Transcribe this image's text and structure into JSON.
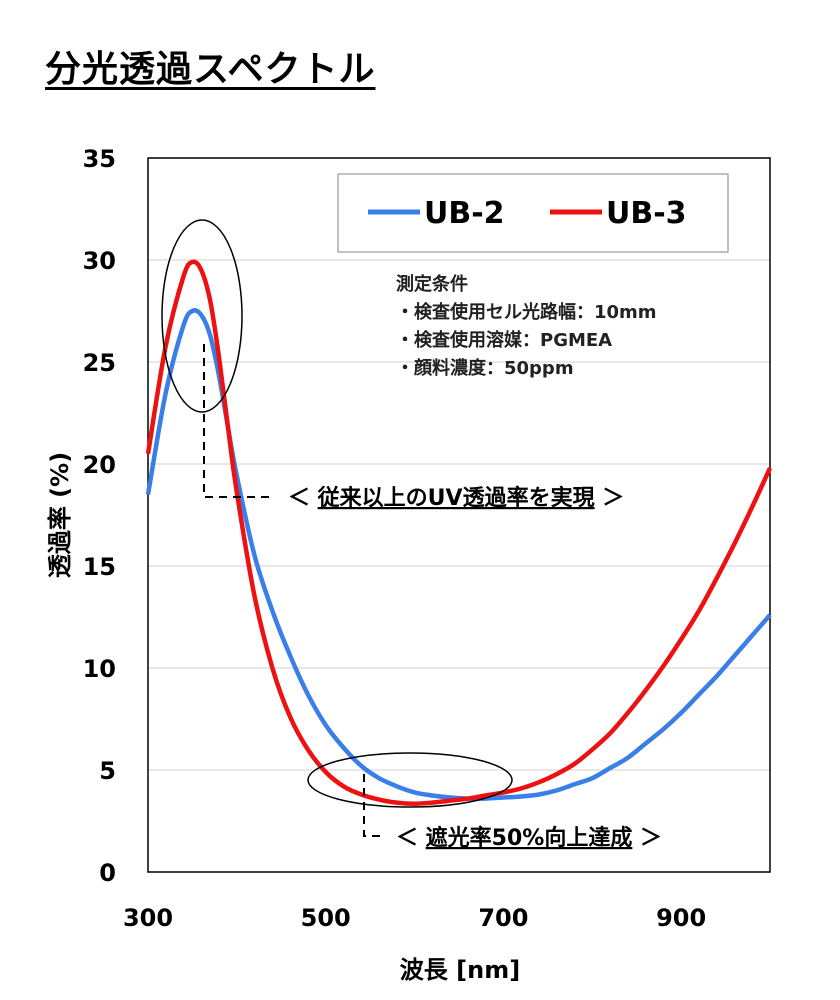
{
  "title": "分光透過スペクトル",
  "chart_data": {
    "type": "line",
    "xlabel": "波長 [nm]",
    "ylabel": "透過率 (%)",
    "xlim": [
      300,
      1000
    ],
    "ylim": [
      0,
      35
    ],
    "xticks": [
      300,
      500,
      700,
      900
    ],
    "yticks": [
      0,
      5,
      10,
      15,
      20,
      25,
      30,
      35
    ],
    "grid": "horizontal",
    "legend_position": "top-right",
    "series": [
      {
        "name": "UB-2",
        "color": "#3A7EE8",
        "x": [
          300,
          320,
          340,
          350,
          360,
          370,
          380,
          390,
          400,
          420,
          440,
          460,
          480,
          500,
          520,
          540,
          560,
          580,
          600,
          620,
          640,
          660,
          680,
          700,
          720,
          740,
          760,
          780,
          800,
          820,
          840,
          860,
          880,
          900,
          920,
          940,
          960,
          980,
          1000
        ],
        "values": [
          18.5,
          23.5,
          26.8,
          27.5,
          27.3,
          26.3,
          24.3,
          21.8,
          19.4,
          15.5,
          12.8,
          10.6,
          8.7,
          7.2,
          6.1,
          5.2,
          4.6,
          4.2,
          3.9,
          3.75,
          3.65,
          3.6,
          3.6,
          3.65,
          3.7,
          3.8,
          4.0,
          4.3,
          4.6,
          5.1,
          5.6,
          6.3,
          7.0,
          7.8,
          8.7,
          9.6,
          10.6,
          11.6,
          12.6
        ]
      },
      {
        "name": "UB-3",
        "color": "#EE1111",
        "x": [
          300,
          320,
          340,
          350,
          360,
          370,
          380,
          390,
          400,
          420,
          440,
          460,
          480,
          500,
          520,
          540,
          560,
          580,
          600,
          620,
          640,
          660,
          680,
          700,
          720,
          740,
          760,
          780,
          800,
          820,
          840,
          860,
          880,
          900,
          920,
          940,
          960,
          980,
          1000
        ],
        "values": [
          20.5,
          25.8,
          29.2,
          29.9,
          29.5,
          28.0,
          25.2,
          21.8,
          18.6,
          13.5,
          10.0,
          7.6,
          6.0,
          4.9,
          4.2,
          3.8,
          3.55,
          3.4,
          3.35,
          3.4,
          3.5,
          3.6,
          3.75,
          3.9,
          4.1,
          4.4,
          4.8,
          5.3,
          6.0,
          6.8,
          7.8,
          8.9,
          10.1,
          11.4,
          12.8,
          14.4,
          16.1,
          17.9,
          19.8
        ]
      }
    ],
    "conditions": {
      "heading": "測定条件",
      "items": [
        "・検査使用セル光路幅：10mm",
        "・検査使用溶媒：PGMEA",
        "・顔料濃度：50ppm"
      ]
    },
    "annotations": [
      {
        "open": "＜ ",
        "text": "従来以上のUV透過率を実現",
        "close": " ＞",
        "x": 360,
        "y": 18.4
      },
      {
        "open": "＜ ",
        "text": "遮光率50%向上達成",
        "close": " ＞",
        "x": 560,
        "y": 1.6
      }
    ]
  }
}
